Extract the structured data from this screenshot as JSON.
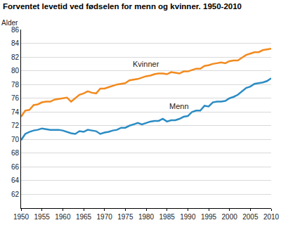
{
  "chart_data": {
    "type": "line",
    "title": "Forventet levetid ved fødselen for menn og kvinner. 1950-2010",
    "y_label": "Alder",
    "x": [
      1950,
      1951,
      1952,
      1953,
      1954,
      1955,
      1956,
      1957,
      1958,
      1959,
      1960,
      1961,
      1962,
      1963,
      1964,
      1965,
      1966,
      1967,
      1968,
      1969,
      1970,
      1971,
      1972,
      1973,
      1974,
      1975,
      1976,
      1977,
      1978,
      1979,
      1980,
      1981,
      1982,
      1983,
      1984,
      1985,
      1986,
      1987,
      1988,
      1989,
      1990,
      1991,
      1992,
      1993,
      1994,
      1995,
      1996,
      1997,
      1998,
      1999,
      2000,
      2001,
      2002,
      2003,
      2004,
      2005,
      2006,
      2007,
      2008,
      2009,
      2010
    ],
    "series": [
      {
        "name": "Kvinner",
        "color": "#f28a1e",
        "values": [
          73.3,
          74.2,
          74.3,
          75.0,
          75.1,
          75.4,
          75.5,
          75.5,
          75.8,
          75.9,
          76.0,
          76.1,
          75.5,
          76.0,
          76.5,
          76.7,
          77.0,
          76.8,
          76.7,
          77.4,
          77.4,
          77.6,
          77.8,
          78.0,
          78.1,
          78.2,
          78.6,
          78.7,
          78.8,
          79.0,
          79.2,
          79.3,
          79.5,
          79.6,
          79.6,
          79.5,
          79.8,
          79.7,
          79.6,
          79.9,
          79.9,
          80.1,
          80.3,
          80.3,
          80.7,
          80.8,
          81.0,
          81.1,
          81.2,
          81.1,
          81.4,
          81.5,
          81.5,
          81.9,
          82.3,
          82.5,
          82.7,
          82.7,
          83.0,
          83.1,
          83.2
        ]
      },
      {
        "name": "Menn",
        "color": "#2b8cc4",
        "values": [
          69.9,
          70.8,
          71.1,
          71.3,
          71.4,
          71.6,
          71.5,
          71.4,
          71.4,
          71.4,
          71.3,
          71.1,
          70.9,
          70.8,
          71.2,
          71.1,
          71.4,
          71.3,
          71.2,
          70.8,
          71.0,
          71.1,
          71.3,
          71.4,
          71.7,
          71.7,
          72.0,
          72.2,
          72.4,
          72.2,
          72.4,
          72.6,
          72.7,
          72.7,
          73.0,
          72.6,
          72.8,
          72.8,
          73.0,
          73.3,
          73.4,
          74.0,
          74.2,
          74.2,
          74.9,
          74.8,
          75.4,
          75.5,
          75.5,
          75.6,
          76.0,
          76.2,
          76.5,
          77.0,
          77.5,
          77.7,
          78.1,
          78.2,
          78.3,
          78.5,
          78.9
        ]
      }
    ],
    "xlim": [
      1950,
      2010
    ],
    "xticks": [
      1950,
      1955,
      1960,
      1965,
      1970,
      1975,
      1980,
      1985,
      1990,
      1995,
      2000,
      2005,
      2010
    ],
    "ylim": [
      60,
      86
    ],
    "yticks": [
      62,
      64,
      66,
      68,
      70,
      72,
      74,
      76,
      78,
      80,
      82,
      84,
      86
    ],
    "grid": true
  }
}
